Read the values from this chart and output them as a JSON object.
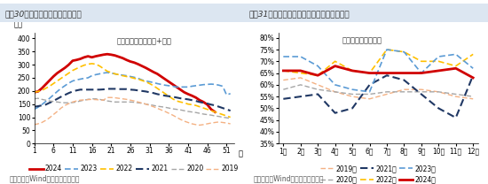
{
  "chart1": {
    "title": "图表30：近半月沥青延续快速去库",
    "subtitle": "国内沥青库存：社库+厂库",
    "ylabel": "万吨",
    "xlabel": "周",
    "source": "资料来源：Wind，国盛证券研究所",
    "ylim": [
      0,
      420
    ],
    "yticks": [
      0,
      50,
      100,
      150,
      200,
      250,
      300,
      350,
      400
    ],
    "xticks": [
      1,
      6,
      11,
      16,
      21,
      26,
      31,
      36,
      41,
      46,
      51
    ],
    "series": {
      "2024": {
        "color": "#d00000",
        "style": "solid",
        "lw": 2.0,
        "data_x": [
          1,
          2,
          3,
          4,
          5,
          6,
          7,
          8,
          9,
          10,
          11,
          12,
          13,
          14,
          15,
          16,
          17,
          18,
          19,
          20,
          21,
          22,
          23,
          24,
          25,
          26,
          27,
          28,
          29,
          30,
          31,
          32,
          33,
          34,
          35,
          36,
          37,
          38,
          39,
          40,
          41,
          42,
          43,
          44,
          45,
          46,
          47,
          48
        ],
        "data_y": [
          195,
          198,
          210,
          225,
          240,
          255,
          268,
          278,
          288,
          300,
          315,
          318,
          322,
          328,
          332,
          328,
          332,
          335,
          338,
          340,
          338,
          335,
          330,
          325,
          318,
          312,
          308,
          302,
          295,
          288,
          280,
          272,
          265,
          255,
          245,
          235,
          225,
          215,
          205,
          195,
          188,
          182,
          175,
          165,
          158,
          148,
          130,
          120
        ]
      },
      "2023": {
        "color": "#5b9bd5",
        "style": "dashed",
        "lw": 1.2,
        "data_x": [
          1,
          2,
          3,
          4,
          5,
          6,
          7,
          8,
          9,
          10,
          11,
          12,
          13,
          14,
          15,
          16,
          17,
          18,
          19,
          20,
          21,
          22,
          23,
          24,
          25,
          26,
          27,
          28,
          29,
          30,
          31,
          32,
          33,
          34,
          35,
          36,
          37,
          38,
          39,
          40,
          41,
          42,
          43,
          44,
          45,
          46,
          47,
          48,
          49,
          50,
          51,
          52
        ],
        "data_y": [
          130,
          138,
          148,
          160,
          172,
          185,
          198,
          210,
          220,
          230,
          238,
          242,
          245,
          248,
          250,
          258,
          262,
          265,
          268,
          270,
          268,
          265,
          262,
          260,
          258,
          255,
          252,
          248,
          242,
          238,
          235,
          232,
          228,
          225,
          222,
          220,
          218,
          215,
          215,
          215,
          215,
          218,
          220,
          222,
          224,
          225,
          226,
          225,
          222,
          218,
          185,
          190
        ]
      },
      "2022": {
        "color": "#ffc000",
        "style": "dashed",
        "lw": 1.2,
        "data_x": [
          1,
          2,
          3,
          4,
          5,
          6,
          7,
          8,
          9,
          10,
          11,
          12,
          13,
          14,
          15,
          16,
          17,
          18,
          19,
          20,
          21,
          22,
          23,
          24,
          25,
          26,
          27,
          28,
          29,
          30,
          31,
          32,
          33,
          34,
          35,
          36,
          37,
          38,
          39,
          40,
          41,
          42,
          43,
          44,
          45,
          46,
          47,
          48,
          49,
          50,
          51,
          52
        ],
        "data_y": [
          195,
          198,
          202,
          210,
          218,
          228,
          238,
          248,
          258,
          268,
          278,
          285,
          292,
          298,
          302,
          304,
          302,
          295,
          285,
          275,
          270,
          265,
          262,
          258,
          255,
          252,
          248,
          245,
          240,
          235,
          228,
          220,
          210,
          200,
          190,
          180,
          170,
          162,
          158,
          155,
          150,
          148,
          145,
          140,
          135,
          130,
          125,
          120,
          115,
          110,
          105,
          100
        ]
      },
      "2021": {
        "color": "#203864",
        "style": "dashed",
        "lw": 1.5,
        "data_x": [
          1,
          2,
          3,
          4,
          5,
          6,
          7,
          8,
          9,
          10,
          11,
          12,
          13,
          14,
          15,
          16,
          17,
          18,
          19,
          20,
          21,
          22,
          23,
          24,
          25,
          26,
          27,
          28,
          29,
          30,
          31,
          32,
          33,
          34,
          35,
          36,
          37,
          38,
          39,
          40,
          41,
          42,
          43,
          44,
          45,
          46,
          47,
          48,
          49,
          50,
          51,
          52
        ],
        "data_y": [
          140,
          142,
          145,
          148,
          155,
          162,
          170,
          178,
          185,
          192,
          198,
          202,
          205,
          205,
          205,
          205,
          205,
          205,
          206,
          208,
          208,
          208,
          207,
          207,
          207,
          205,
          204,
          202,
          200,
          198,
          195,
          192,
          188,
          185,
          182,
          180,
          178,
          175,
          172,
          170,
          168,
          165,
          162,
          158,
          155,
          152,
          148,
          145,
          140,
          135,
          130,
          125
        ]
      },
      "2020": {
        "color": "#a6a6a6",
        "style": "dashed",
        "lw": 1.0,
        "data_x": [
          1,
          2,
          3,
          4,
          5,
          6,
          7,
          8,
          9,
          10,
          11,
          12,
          13,
          14,
          15,
          16,
          17,
          18,
          19,
          20,
          21,
          22,
          23,
          24,
          25,
          26,
          27,
          28,
          29,
          30,
          31,
          32,
          33,
          34,
          35,
          36,
          37,
          38,
          39,
          40,
          41,
          42,
          43,
          44,
          45,
          46,
          47,
          48,
          49,
          50,
          51,
          52
        ],
        "data_y": [
          170,
          172,
          168,
          165,
          162,
          160,
          158,
          156,
          155,
          155,
          156,
          158,
          162,
          165,
          168,
          170,
          170,
          168,
          165,
          162,
          160,
          158,
          158,
          158,
          158,
          158,
          157,
          155,
          153,
          150,
          148,
          145,
          142,
          140,
          138,
          135,
          132,
          130,
          128,
          125,
          122,
          120,
          118,
          115,
          112,
          110,
          108,
          105,
          103,
          100,
          98,
          95
        ]
      },
      "2019": {
        "color": "#f4b183",
        "style": "dashed",
        "lw": 1.0,
        "data_x": [
          1,
          2,
          3,
          4,
          5,
          6,
          7,
          8,
          9,
          10,
          11,
          12,
          13,
          14,
          15,
          16,
          17,
          18,
          19,
          20,
          21,
          22,
          23,
          24,
          25,
          26,
          27,
          28,
          29,
          30,
          31,
          32,
          33,
          34,
          35,
          36,
          37,
          38,
          39,
          40,
          41,
          42,
          43,
          44,
          45,
          46,
          47,
          48,
          49,
          50,
          51,
          52
        ],
        "data_y": [
          72,
          75,
          80,
          88,
          98,
          110,
          122,
          135,
          145,
          152,
          158,
          162,
          165,
          166,
          167,
          168,
          167,
          166,
          165,
          175,
          175,
          174,
          172,
          170,
          168,
          165,
          162,
          158,
          154,
          150,
          145,
          140,
          134,
          128,
          122,
          115,
          108,
          100,
          92,
          85,
          80,
          75,
          72,
          70,
          72,
          75,
          78,
          80,
          82,
          80,
          78,
          75
        ]
      }
    },
    "legend_order": [
      "2024",
      "2023",
      "2022",
      "2021",
      "2020",
      "2019"
    ]
  },
  "chart2": {
    "title": "图表31：近半月全国水泥库容比环比季度回升",
    "subtitle": "库容比：水泥：全国",
    "ylabel": "",
    "xlabel": "",
    "source": "资料来源：Wind，国盛证券研究所",
    "ylim": [
      0.35,
      0.82
    ],
    "yticks": [
      0.35,
      0.4,
      0.45,
      0.5,
      0.55,
      0.6,
      0.65,
      0.7,
      0.75,
      0.8
    ],
    "yticklabels": [
      "35%",
      "40%",
      "45%",
      "50%",
      "55%",
      "60%",
      "65%",
      "70%",
      "75%",
      "80%"
    ],
    "xtick_positions": [
      0,
      1,
      2,
      3,
      4,
      5,
      6,
      7,
      8,
      9,
      10,
      11
    ],
    "xtick_labels": [
      "1月",
      "2月",
      "3月",
      "4月",
      "5月",
      "6月",
      "7月",
      "8月",
      "9月",
      "10月",
      "11月",
      "12月"
    ],
    "series": {
      "2019": {
        "color": "#f4b183",
        "style": "dashed",
        "lw": 1.0,
        "data": [
          0.62,
          0.63,
          0.6,
          0.57,
          0.55,
          0.54,
          0.56,
          0.58,
          0.58,
          0.57,
          0.55,
          0.54
        ]
      },
      "2020": {
        "color": "#a6a6a6",
        "style": "dashed",
        "lw": 1.0,
        "data": [
          0.58,
          0.6,
          0.58,
          0.57,
          0.56,
          0.56,
          0.57,
          0.57,
          0.57,
          0.57,
          0.56,
          0.55
        ]
      },
      "2021": {
        "color": "#203864",
        "style": "dashed",
        "lw": 1.5,
        "data": [
          0.54,
          0.55,
          0.56,
          0.48,
          0.5,
          0.6,
          0.64,
          0.62,
          0.56,
          0.5,
          0.46,
          0.64
        ]
      },
      "2022": {
        "color": "#ffc000",
        "style": "dashed",
        "lw": 1.2,
        "data": [
          0.66,
          0.65,
          0.64,
          0.7,
          0.66,
          0.65,
          0.75,
          0.74,
          0.7,
          0.7,
          0.68,
          0.73
        ]
      },
      "2023": {
        "color": "#5b9bd5",
        "style": "dashed",
        "lw": 1.2,
        "data": [
          0.72,
          0.72,
          0.68,
          0.6,
          0.58,
          0.57,
          0.75,
          0.74,
          0.65,
          0.72,
          0.73,
          0.67
        ]
      },
      "2024": {
        "color": "#d00000",
        "style": "solid",
        "lw": 2.0,
        "data": [
          0.66,
          0.66,
          0.64,
          0.68,
          0.66,
          0.65,
          0.65,
          0.65,
          0.65,
          0.66,
          0.67,
          0.63
        ]
      }
    },
    "legend_order": [
      "2019",
      "2020",
      "2021",
      "2022",
      "2023",
      "2024"
    ]
  },
  "title_fontsize": 6.5,
  "source_fontsize": 5.5,
  "label_fontsize": 6.0,
  "tick_fontsize": 5.5,
  "legend_fontsize": 5.5,
  "subtitle_fontsize": 6.0,
  "background_color": "#ffffff",
  "header_bg": "#dce6f1"
}
